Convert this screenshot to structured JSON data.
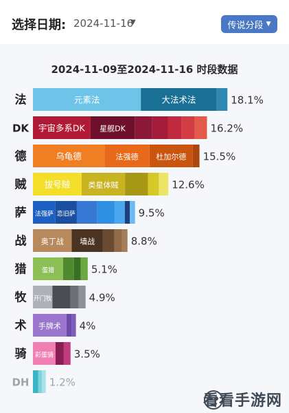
{
  "header": {
    "date_label": "选择日期:",
    "date_value": "2024-11-16",
    "segment_button": "传说分段"
  },
  "chart_data": {
    "type": "bar",
    "title": "2024-11-09至2024-11-16 时段数据",
    "categories": [
      "法",
      "DK",
      "德",
      "贼",
      "萨",
      "战",
      "猎",
      "牧",
      "术",
      "骑",
      "DH"
    ],
    "values": [
      18.1,
      16.2,
      15.5,
      12.6,
      9.5,
      8.8,
      5.1,
      4.9,
      4.0,
      3.5,
      1.2
    ],
    "value_labels": [
      "18.1%",
      "16.2%",
      "15.5%",
      "12.6%",
      "9.5%",
      "8.8%",
      "5.1%",
      "4.9%",
      "4%",
      "3.5%",
      "1.2%"
    ],
    "rows": [
      {
        "segments": [
          {
            "label": "元素法",
            "share": 0.555,
            "color": "#6ec3e8"
          },
          {
            "label": "大法术法",
            "share": 0.39,
            "color": "#1a6f94"
          },
          {
            "label": "",
            "share": 0.055,
            "color": "#2e88b2"
          }
        ]
      },
      {
        "segments": [
          {
            "label": "宇宙多系DK",
            "share": 0.33,
            "color": "#b01a34"
          },
          {
            "label": "星舰DK",
            "share": 0.255,
            "color": "#6e0f2c"
          },
          {
            "label": "",
            "share": 0.1,
            "color": "#8c1838"
          },
          {
            "label": "",
            "share": 0.09,
            "color": "#a41c3a"
          },
          {
            "label": "",
            "share": 0.08,
            "color": "#c02a3e"
          },
          {
            "label": "",
            "share": 0.075,
            "color": "#d33c42"
          },
          {
            "label": "",
            "share": 0.07,
            "color": "#e25a4a"
          }
        ]
      },
      {
        "segments": [
          {
            "label": "乌龟德",
            "share": 0.43,
            "color": "#f07f24"
          },
          {
            "label": "法强德",
            "share": 0.27,
            "color": "#e8691a"
          },
          {
            "label": "杜加尔德",
            "share": 0.26,
            "color": "#c9550e"
          },
          {
            "label": "",
            "share": 0.04,
            "color": "#a9470c"
          }
        ]
      },
      {
        "segments": [
          {
            "label": "拔号贼",
            "share": 0.36,
            "color": "#f3df29"
          },
          {
            "label": "类星体贼",
            "share": 0.32,
            "color": "#c8b320"
          },
          {
            "label": "",
            "share": 0.17,
            "color": "#a79816"
          },
          {
            "label": "",
            "share": 0.08,
            "color": "#d6c826"
          },
          {
            "label": "",
            "share": 0.07,
            "color": "#ede56a"
          }
        ]
      },
      {
        "segments": [
          {
            "label": "法强萨",
            "share": 0.22,
            "color": "#1e5fc2"
          },
          {
            "label": "恋旧萨",
            "share": 0.21,
            "color": "#1a4e9e"
          },
          {
            "label": "",
            "share": 0.2,
            "color": "#3a78d6"
          },
          {
            "label": "",
            "share": 0.17,
            "color": "#2f8fe0"
          },
          {
            "label": "",
            "share": 0.1,
            "color": "#4aa7ee"
          },
          {
            "label": "",
            "share": 0.05,
            "color": "#1d3f80"
          },
          {
            "label": "",
            "share": 0.05,
            "color": "#6cbcf4"
          }
        ]
      },
      {
        "segments": [
          {
            "label": "奥丁战",
            "share": 0.41,
            "color": "#b8895c"
          },
          {
            "label": "墙战",
            "share": 0.33,
            "color": "#4b3322"
          },
          {
            "label": "",
            "share": 0.12,
            "color": "#6b4b31"
          },
          {
            "label": "",
            "share": 0.08,
            "color": "#8f6b48"
          },
          {
            "label": "",
            "share": 0.06,
            "color": "#a47e5a"
          }
        ]
      },
      {
        "segments": [
          {
            "label": "蛋猎",
            "share": 0.55,
            "color": "#8cc057"
          },
          {
            "label": "",
            "share": 0.2,
            "color": "#4f8a2e"
          },
          {
            "label": "",
            "share": 0.12,
            "color": "#3a6e22"
          },
          {
            "label": "",
            "share": 0.13,
            "color": "#6aa842"
          }
        ]
      },
      {
        "segments": [
          {
            "label": "开门牧",
            "share": 0.37,
            "color": "#aeb2b8"
          },
          {
            "label": "",
            "share": 0.34,
            "color": "#4a4d52"
          },
          {
            "label": "",
            "share": 0.16,
            "color": "#6c7076"
          },
          {
            "label": "",
            "share": 0.13,
            "color": "#8d9197"
          }
        ]
      },
      {
        "segments": [
          {
            "label": "手牌术",
            "share": 0.78,
            "color": "#9a76cf"
          },
          {
            "label": "",
            "share": 0.12,
            "color": "#6b4aa8"
          },
          {
            "label": "",
            "share": 0.1,
            "color": "#7c5cb8"
          }
        ]
      },
      {
        "segments": [
          {
            "label": "彩蛋骑",
            "share": 0.6,
            "color": "#f080b4"
          },
          {
            "label": "",
            "share": 0.22,
            "color": "#8a1e54"
          },
          {
            "label": "",
            "share": 0.18,
            "color": "#c23a7e"
          }
        ]
      },
      {
        "segments": [
          {
            "label": "",
            "share": 0.4,
            "color": "#38b6c6"
          },
          {
            "label": "",
            "share": 0.3,
            "color": "#7fd3dc"
          },
          {
            "label": "",
            "share": 0.3,
            "color": "#a9e3ea"
          }
        ]
      }
    ],
    "xlim": [
      0,
      20
    ],
    "legend": "none",
    "grid": false
  },
  "watermark": "看看手游网"
}
